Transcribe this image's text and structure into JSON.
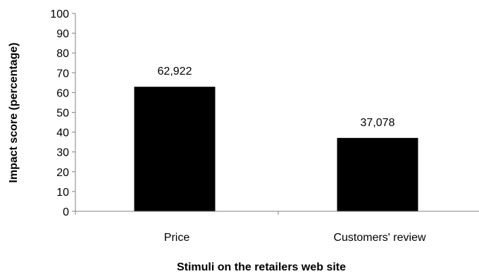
{
  "chart_data": {
    "type": "bar",
    "title": "",
    "xlabel": "Stimuli on the retailers web site",
    "ylabel": "Impact score (percentage)",
    "categories": [
      "Price",
      "Customers' review"
    ],
    "values": [
      62.922,
      37.078
    ],
    "data_labels": [
      "62,922",
      "37,078"
    ],
    "ylim": [
      0,
      100
    ],
    "yticks": [
      0,
      10,
      20,
      30,
      40,
      50,
      60,
      70,
      80,
      90,
      100
    ],
    "grid": false,
    "legend": "none",
    "bar_color": "#000000"
  }
}
